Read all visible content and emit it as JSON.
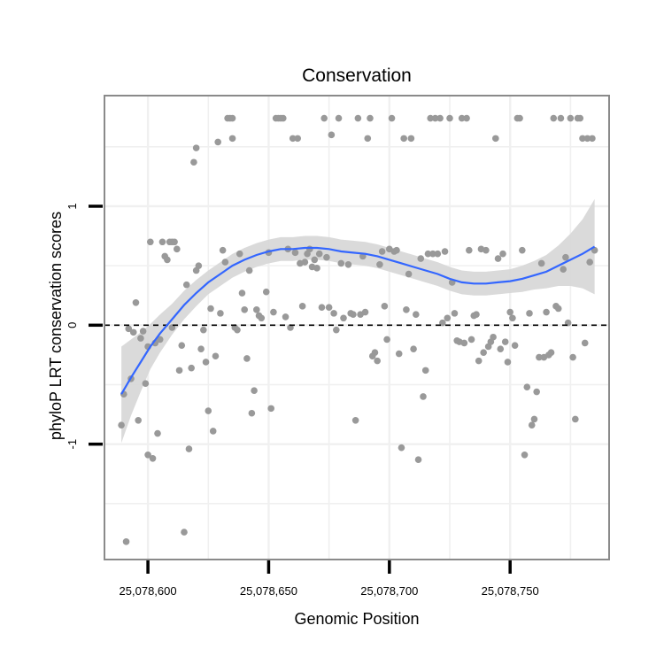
{
  "chart_data": {
    "type": "scatter",
    "title": "Conservation",
    "xlabel": "Genomic Position",
    "ylabel": "phyloP LRT conservation scores",
    "xlim": [
      25078582,
      25078791
    ],
    "ylim": [
      -1.97,
      1.93
    ],
    "x_ticks": [
      25078600,
      25078650,
      25078700,
      25078750
    ],
    "x_tick_labels": [
      "25,078,600",
      "25,078,650",
      "25,078,700",
      "25,078,750"
    ],
    "y_ticks": [
      -1,
      0,
      1
    ],
    "y_tick_labels": [
      "-1",
      "0",
      "1"
    ],
    "grid": true,
    "reference_line": {
      "y": 0,
      "style": "dashed"
    },
    "colors": {
      "points": "#999999",
      "smooth_line": "#3366ff",
      "ribbon": "#d6d6d6",
      "panel_border": "#8a8a8a",
      "grid": "#f0f0f0"
    },
    "points": [
      [
        25078589,
        -0.84
      ],
      [
        25078590,
        -0.58
      ],
      [
        25078591,
        -1.82
      ],
      [
        25078592,
        -0.03
      ],
      [
        25078593,
        -0.45
      ],
      [
        25078594,
        -0.06
      ],
      [
        25078595,
        0.19
      ],
      [
        25078596,
        -0.8
      ],
      [
        25078597,
        -0.11
      ],
      [
        25078598,
        -0.05
      ],
      [
        25078599,
        -0.49
      ],
      [
        25078600,
        -1.09
      ],
      [
        25078600,
        -0.18
      ],
      [
        25078601,
        0.7
      ],
      [
        25078602,
        -1.12
      ],
      [
        25078603,
        -0.15
      ],
      [
        25078604,
        -0.91
      ],
      [
        25078605,
        -0.12
      ],
      [
        25078606,
        0.7
      ],
      [
        25078607,
        0.58
      ],
      [
        25078608,
        0.55
      ],
      [
        25078609,
        0.7
      ],
      [
        25078610,
        -0.02
      ],
      [
        25078610,
        0.7
      ],
      [
        25078611,
        0.7
      ],
      [
        25078612,
        0.64
      ],
      [
        25078613,
        -0.38
      ],
      [
        25078614,
        -0.17
      ],
      [
        25078615,
        -1.74
      ],
      [
        25078616,
        0.34
      ],
      [
        25078617,
        -1.04
      ],
      [
        25078618,
        -0.36
      ],
      [
        25078619,
        1.37
      ],
      [
        25078620,
        1.49
      ],
      [
        25078620,
        0.46
      ],
      [
        25078621,
        0.5
      ],
      [
        25078622,
        -0.2
      ],
      [
        25078623,
        -0.04
      ],
      [
        25078624,
        -0.31
      ],
      [
        25078625,
        -0.72
      ],
      [
        25078626,
        0.14
      ],
      [
        25078627,
        -0.89
      ],
      [
        25078628,
        -0.26
      ],
      [
        25078629,
        1.54
      ],
      [
        25078630,
        0.1
      ],
      [
        25078631,
        0.63
      ],
      [
        25078632,
        0.53
      ],
      [
        25078633,
        1.74
      ],
      [
        25078634,
        1.74
      ],
      [
        25078635,
        1.74
      ],
      [
        25078635,
        1.57
      ],
      [
        25078636,
        -0.02
      ],
      [
        25078637,
        -0.04
      ],
      [
        25078638,
        0.6
      ],
      [
        25078639,
        0.27
      ],
      [
        25078640,
        0.13
      ],
      [
        25078641,
        -0.28
      ],
      [
        25078642,
        0.46
      ],
      [
        25078643,
        -0.74
      ],
      [
        25078644,
        -0.55
      ],
      [
        25078645,
        0.13
      ],
      [
        25078646,
        0.08
      ],
      [
        25078647,
        0.06
      ],
      [
        25078649,
        0.28
      ],
      [
        25078650,
        0.61
      ],
      [
        25078651,
        -0.7
      ],
      [
        25078652,
        0.11
      ],
      [
        25078653,
        1.74
      ],
      [
        25078654,
        1.74
      ],
      [
        25078655,
        1.74
      ],
      [
        25078656,
        1.74
      ],
      [
        25078657,
        0.07
      ],
      [
        25078658,
        0.64
      ],
      [
        25078659,
        -0.02
      ],
      [
        25078660,
        1.57
      ],
      [
        25078661,
        0.61
      ],
      [
        25078662,
        1.57
      ],
      [
        25078663,
        0.52
      ],
      [
        25078664,
        0.16
      ],
      [
        25078665,
        0.53
      ],
      [
        25078666,
        0.6
      ],
      [
        25078667,
        0.64
      ],
      [
        25078668,
        0.49
      ],
      [
        25078669,
        0.55
      ],
      [
        25078670,
        0.48
      ],
      [
        25078671,
        0.6
      ],
      [
        25078672,
        0.15
      ],
      [
        25078673,
        1.74
      ],
      [
        25078674,
        0.57
      ],
      [
        25078675,
        0.15
      ],
      [
        25078676,
        1.6
      ],
      [
        25078677,
        0.1
      ],
      [
        25078678,
        -0.04
      ],
      [
        25078679,
        1.74
      ],
      [
        25078680,
        0.52
      ],
      [
        25078681,
        0.06
      ],
      [
        25078683,
        0.51
      ],
      [
        25078684,
        0.1
      ],
      [
        25078685,
        0.09
      ],
      [
        25078686,
        -0.8
      ],
      [
        25078687,
        1.74
      ],
      [
        25078688,
        0.09
      ],
      [
        25078689,
        0.58
      ],
      [
        25078690,
        0.11
      ],
      [
        25078691,
        1.57
      ],
      [
        25078692,
        1.74
      ],
      [
        25078693,
        -0.26
      ],
      [
        25078694,
        -0.23
      ],
      [
        25078695,
        -0.3
      ],
      [
        25078696,
        0.51
      ],
      [
        25078697,
        0.62
      ],
      [
        25078698,
        0.16
      ],
      [
        25078699,
        -0.12
      ],
      [
        25078700,
        0.64
      ],
      [
        25078701,
        1.74
      ],
      [
        25078702,
        0.62
      ],
      [
        25078703,
        0.63
      ],
      [
        25078704,
        -0.24
      ],
      [
        25078705,
        -1.03
      ],
      [
        25078706,
        1.57
      ],
      [
        25078707,
        0.13
      ],
      [
        25078708,
        0.43
      ],
      [
        25078709,
        1.57
      ],
      [
        25078710,
        -0.2
      ],
      [
        25078711,
        0.09
      ],
      [
        25078712,
        -1.13
      ],
      [
        25078713,
        0.56
      ],
      [
        25078714,
        -0.6
      ],
      [
        25078715,
        -0.38
      ],
      [
        25078716,
        0.6
      ],
      [
        25078717,
        1.74
      ],
      [
        25078718,
        0.6
      ],
      [
        25078719,
        1.74
      ],
      [
        25078720,
        0.6
      ],
      [
        25078721,
        1.74
      ],
      [
        25078722,
        0.02
      ],
      [
        25078723,
        0.62
      ],
      [
        25078724,
        0.06
      ],
      [
        25078725,
        1.74
      ],
      [
        25078726,
        0.36
      ],
      [
        25078727,
        0.1
      ],
      [
        25078728,
        -0.13
      ],
      [
        25078729,
        -0.14
      ],
      [
        25078730,
        1.74
      ],
      [
        25078731,
        -0.15
      ],
      [
        25078732,
        1.74
      ],
      [
        25078733,
        0.63
      ],
      [
        25078734,
        -0.12
      ],
      [
        25078735,
        0.08
      ],
      [
        25078736,
        0.09
      ],
      [
        25078737,
        -0.3
      ],
      [
        25078738,
        0.64
      ],
      [
        25078739,
        -0.23
      ],
      [
        25078740,
        0.63
      ],
      [
        25078741,
        -0.18
      ],
      [
        25078742,
        -0.14
      ],
      [
        25078743,
        -0.1
      ],
      [
        25078744,
        1.57
      ],
      [
        25078745,
        0.56
      ],
      [
        25078746,
        -0.2
      ],
      [
        25078747,
        0.6
      ],
      [
        25078748,
        -0.14
      ],
      [
        25078749,
        -0.31
      ],
      [
        25078750,
        0.11
      ],
      [
        25078751,
        0.06
      ],
      [
        25078752,
        -0.17
      ],
      [
        25078753,
        1.74
      ],
      [
        25078754,
        1.74
      ],
      [
        25078755,
        0.63
      ],
      [
        25078756,
        -1.09
      ],
      [
        25078757,
        -0.52
      ],
      [
        25078758,
        0.1
      ],
      [
        25078759,
        -0.84
      ],
      [
        25078760,
        -0.79
      ],
      [
        25078761,
        -0.56
      ],
      [
        25078762,
        -0.27
      ],
      [
        25078763,
        0.52
      ],
      [
        25078764,
        -0.27
      ],
      [
        25078765,
        0.11
      ],
      [
        25078766,
        -0.25
      ],
      [
        25078767,
        -0.23
      ],
      [
        25078768,
        1.74
      ],
      [
        25078769,
        0.16
      ],
      [
        25078770,
        0.14
      ],
      [
        25078771,
        1.74
      ],
      [
        25078772,
        0.47
      ],
      [
        25078773,
        0.57
      ],
      [
        25078774,
        0.02
      ],
      [
        25078775,
        1.74
      ],
      [
        25078776,
        -0.27
      ],
      [
        25078777,
        -0.79
      ],
      [
        25078778,
        1.74
      ],
      [
        25078779,
        1.74
      ],
      [
        25078780,
        1.57
      ],
      [
        25078781,
        -0.15
      ],
      [
        25078782,
        1.57
      ],
      [
        25078783,
        0.53
      ],
      [
        25078784,
        1.57
      ],
      [
        25078785,
        0.63
      ]
    ],
    "smooth": [
      {
        "x": 25078589,
        "y": -0.58,
        "lo": -0.99,
        "hi": -0.18
      },
      {
        "x": 25078593,
        "y": -0.44,
        "lo": -0.76,
        "hi": -0.12
      },
      {
        "x": 25078597,
        "y": -0.31,
        "lo": -0.56,
        "hi": -0.06
      },
      {
        "x": 25078601,
        "y": -0.18,
        "lo": -0.37,
        "hi": 0.01
      },
      {
        "x": 25078605,
        "y": -0.07,
        "lo": -0.23,
        "hi": 0.09
      },
      {
        "x": 25078610,
        "y": 0.05,
        "lo": -0.08,
        "hi": 0.18
      },
      {
        "x": 25078615,
        "y": 0.17,
        "lo": 0.05,
        "hi": 0.29
      },
      {
        "x": 25078620,
        "y": 0.27,
        "lo": 0.16,
        "hi": 0.38
      },
      {
        "x": 25078625,
        "y": 0.36,
        "lo": 0.26,
        "hi": 0.46
      },
      {
        "x": 25078630,
        "y": 0.43,
        "lo": 0.33,
        "hi": 0.53
      },
      {
        "x": 25078635,
        "y": 0.5,
        "lo": 0.4,
        "hi": 0.6
      },
      {
        "x": 25078640,
        "y": 0.55,
        "lo": 0.45,
        "hi": 0.65
      },
      {
        "x": 25078645,
        "y": 0.59,
        "lo": 0.49,
        "hi": 0.69
      },
      {
        "x": 25078650,
        "y": 0.62,
        "lo": 0.52,
        "hi": 0.72
      },
      {
        "x": 25078655,
        "y": 0.64,
        "lo": 0.54,
        "hi": 0.74
      },
      {
        "x": 25078660,
        "y": 0.64,
        "lo": 0.54,
        "hi": 0.74
      },
      {
        "x": 25078665,
        "y": 0.65,
        "lo": 0.55,
        "hi": 0.75
      },
      {
        "x": 25078670,
        "y": 0.65,
        "lo": 0.55,
        "hi": 0.75
      },
      {
        "x": 25078675,
        "y": 0.64,
        "lo": 0.54,
        "hi": 0.74
      },
      {
        "x": 25078680,
        "y": 0.62,
        "lo": 0.52,
        "hi": 0.72
      },
      {
        "x": 25078685,
        "y": 0.61,
        "lo": 0.51,
        "hi": 0.71
      },
      {
        "x": 25078690,
        "y": 0.6,
        "lo": 0.5,
        "hi": 0.7
      },
      {
        "x": 25078695,
        "y": 0.58,
        "lo": 0.48,
        "hi": 0.68
      },
      {
        "x": 25078700,
        "y": 0.55,
        "lo": 0.45,
        "hi": 0.65
      },
      {
        "x": 25078705,
        "y": 0.52,
        "lo": 0.42,
        "hi": 0.62
      },
      {
        "x": 25078710,
        "y": 0.49,
        "lo": 0.39,
        "hi": 0.59
      },
      {
        "x": 25078715,
        "y": 0.46,
        "lo": 0.36,
        "hi": 0.56
      },
      {
        "x": 25078720,
        "y": 0.43,
        "lo": 0.33,
        "hi": 0.53
      },
      {
        "x": 25078725,
        "y": 0.39,
        "lo": 0.29,
        "hi": 0.49
      },
      {
        "x": 25078730,
        "y": 0.36,
        "lo": 0.26,
        "hi": 0.46
      },
      {
        "x": 25078735,
        "y": 0.35,
        "lo": 0.25,
        "hi": 0.45
      },
      {
        "x": 25078740,
        "y": 0.35,
        "lo": 0.25,
        "hi": 0.45
      },
      {
        "x": 25078745,
        "y": 0.36,
        "lo": 0.26,
        "hi": 0.46
      },
      {
        "x": 25078750,
        "y": 0.37,
        "lo": 0.27,
        "hi": 0.47
      },
      {
        "x": 25078755,
        "y": 0.39,
        "lo": 0.28,
        "hi": 0.5
      },
      {
        "x": 25078760,
        "y": 0.42,
        "lo": 0.3,
        "hi": 0.54
      },
      {
        "x": 25078765,
        "y": 0.45,
        "lo": 0.31,
        "hi": 0.59
      },
      {
        "x": 25078770,
        "y": 0.5,
        "lo": 0.33,
        "hi": 0.67
      },
      {
        "x": 25078775,
        "y": 0.55,
        "lo": 0.33,
        "hi": 0.77
      },
      {
        "x": 25078780,
        "y": 0.6,
        "lo": 0.31,
        "hi": 0.89
      },
      {
        "x": 25078785,
        "y": 0.66,
        "lo": 0.26,
        "hi": 1.06
      }
    ]
  }
}
